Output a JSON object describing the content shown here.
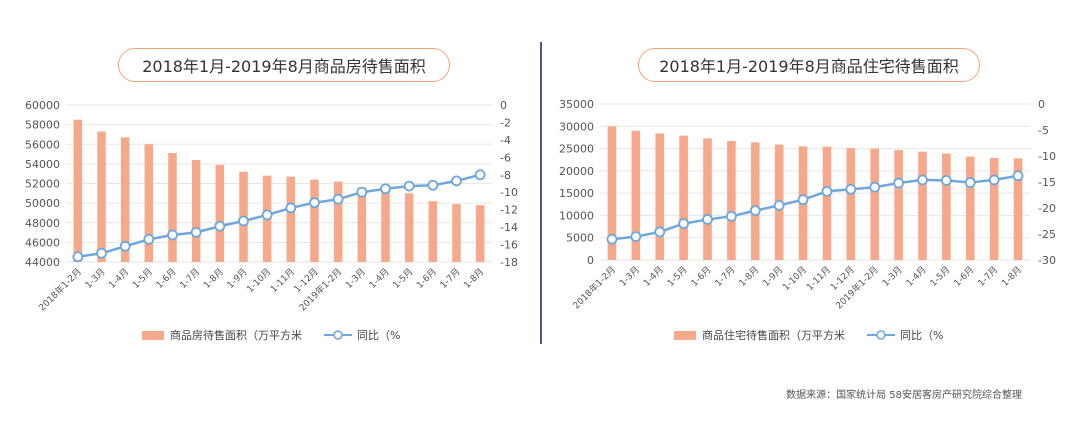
{
  "source": "数据来源：国家统计局 58安居客房产研究院综合整理",
  "colors": {
    "bar": "#f5a98a",
    "line": "#6fa6dd",
    "marker_fill": "#ffffff",
    "grid": "#e6e6e6",
    "axis_text": "#555555",
    "pill_border": "#f2a47d",
    "divider": "#4a5a7a"
  },
  "chart_data": [
    {
      "type": "bar",
      "title": "2018年1月-2019年8月商品房待售面积",
      "categories": [
        "2018年1-2月",
        "1-3月",
        "1-4月",
        "1-5月",
        "1-6月",
        "1-7月",
        "1-8月",
        "1-9月",
        "1-10月",
        "1-11月",
        "1-12月",
        "2019年1-2月",
        "1-3月",
        "1-4月",
        "1-5月",
        "1-6月",
        "1-7月",
        "1-8月"
      ],
      "series": [
        {
          "name": "商品房待售面积（万平方米",
          "axis": "left",
          "values": [
            58500,
            57300,
            56700,
            56000,
            55100,
            54400,
            53900,
            53200,
            52800,
            52700,
            52400,
            52200,
            51600,
            51200,
            51000,
            50200,
            49900,
            49800
          ]
        },
        {
          "name": "同比（%",
          "axis": "right",
          "type": "line",
          "values": [
            -17.4,
            -17.0,
            -16.2,
            -15.4,
            -14.9,
            -14.6,
            -13.9,
            -13.3,
            -12.6,
            -11.8,
            -11.2,
            -10.8,
            -10.0,
            -9.6,
            -9.3,
            -9.2,
            -8.7,
            -8.0
          ]
        }
      ],
      "ylim_left": [
        44000,
        60000
      ],
      "yticks_left": [
        "60000",
        "58000",
        "56000",
        "54000",
        "52000",
        "50000",
        "48000",
        "46000",
        "44000"
      ],
      "ylim_right": [
        -18,
        0
      ],
      "yticks_right": [
        "0",
        "-2",
        "-4",
        "-6",
        "-8",
        "-10",
        "-12",
        "-14",
        "-16",
        "-18"
      ],
      "legend_position": "bottom",
      "grid": true
    },
    {
      "type": "bar",
      "title": "2018年1月-2019年8月商品住宅待售面积",
      "categories": [
        "2018年1-2月",
        "1-3月",
        "1-4月",
        "1-5月",
        "1-6月",
        "1-7月",
        "1-8月",
        "1-9月",
        "1-10月",
        "1-11月",
        "1-12月",
        "2019年1-2月",
        "1-3月",
        "1-4月",
        "1-5月",
        "1-6月",
        "1-7月",
        "1-8月"
      ],
      "series": [
        {
          "name": "商品住宅待售面积（万平方米",
          "axis": "left",
          "values": [
            30000,
            29000,
            28400,
            27900,
            27300,
            26700,
            26400,
            25900,
            25500,
            25400,
            25100,
            25000,
            24700,
            24300,
            23900,
            23200,
            22900,
            22800
          ]
        },
        {
          "name": "同比（%",
          "axis": "right",
          "type": "line",
          "values": [
            -26.0,
            -25.5,
            -24.6,
            -23.0,
            -22.2,
            -21.6,
            -20.5,
            -19.5,
            -18.4,
            -16.8,
            -16.4,
            -16.0,
            -15.2,
            -14.6,
            -14.7,
            -15.1,
            -14.6,
            -13.8
          ]
        }
      ],
      "ylim_left": [
        0,
        35000
      ],
      "yticks_left": [
        "35000",
        "30000",
        "25000",
        "20000",
        "15000",
        "10000",
        "5000",
        "0"
      ],
      "ylim_right": [
        -30,
        0
      ],
      "yticks_right": [
        "0",
        "-5",
        "-10",
        "-15",
        "-20",
        "-25",
        "-30"
      ],
      "legend_position": "bottom",
      "grid": true
    }
  ]
}
